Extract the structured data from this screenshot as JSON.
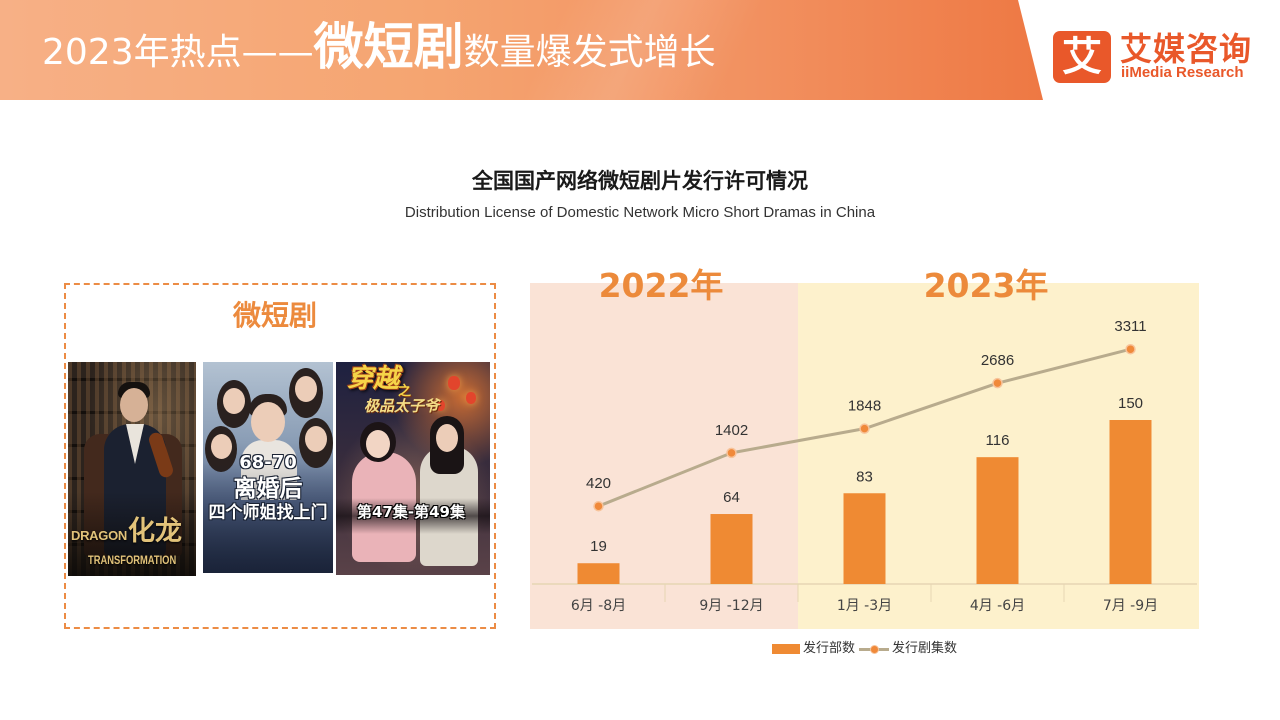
{
  "header": {
    "title_prefix": "2023年热点——",
    "title_highlight": "微短剧",
    "title_suffix": "数量爆发式增长"
  },
  "brand": {
    "logo_glyph": "艾",
    "name_cn": "艾媒咨询",
    "name_en": "iiMedia Research"
  },
  "showcase": {
    "title": "微短剧",
    "posters": [
      {
        "title_en": "DRAGON",
        "title_cn": "化龙",
        "subtitle_en": "TRANSFORMATION"
      },
      {
        "episodes": "68-70",
        "title_top": "离婚后",
        "title_bottom": "四个师姐找上门"
      },
      {
        "title_main": "穿越",
        "title_joiner": "之",
        "title_sub": "极品太子爷",
        "episodes": "第47集-第49集"
      }
    ]
  },
  "chart_data": {
    "type": "bar",
    "title": "全国国产网络微短剧片发行许可情况",
    "subtitle": "Distribution License of Domestic Network Micro Short Dramas in China",
    "categories": [
      "6月 -8月",
      "9月 -12月",
      "1月 -3月",
      "4月 -6月",
      "7月 -9月"
    ],
    "groups": [
      {
        "label": "2022年",
        "from": 0,
        "to": 1
      },
      {
        "label": "2023年",
        "from": 2,
        "to": 4
      }
    ],
    "series": [
      {
        "name": "发行部数",
        "type": "bar",
        "values": [
          19,
          64,
          83,
          116,
          150
        ]
      },
      {
        "name": "发行剧集数",
        "type": "line",
        "values": [
          420,
          1402,
          1848,
          2686,
          3311
        ]
      }
    ],
    "data_labels": true,
    "grid": false,
    "legend": "bottom-center"
  },
  "colors": {
    "accent": "#ec8a3b",
    "brand": "#e9582a",
    "bar": "#ef8a33",
    "line": "#b8ab8d",
    "point": "#f0893a",
    "point_ring": "#f7c39a",
    "axis": "#e6d6b3",
    "group_2022_bg": "#fae3d6",
    "group_2023_bg": "#fdf1cc"
  }
}
